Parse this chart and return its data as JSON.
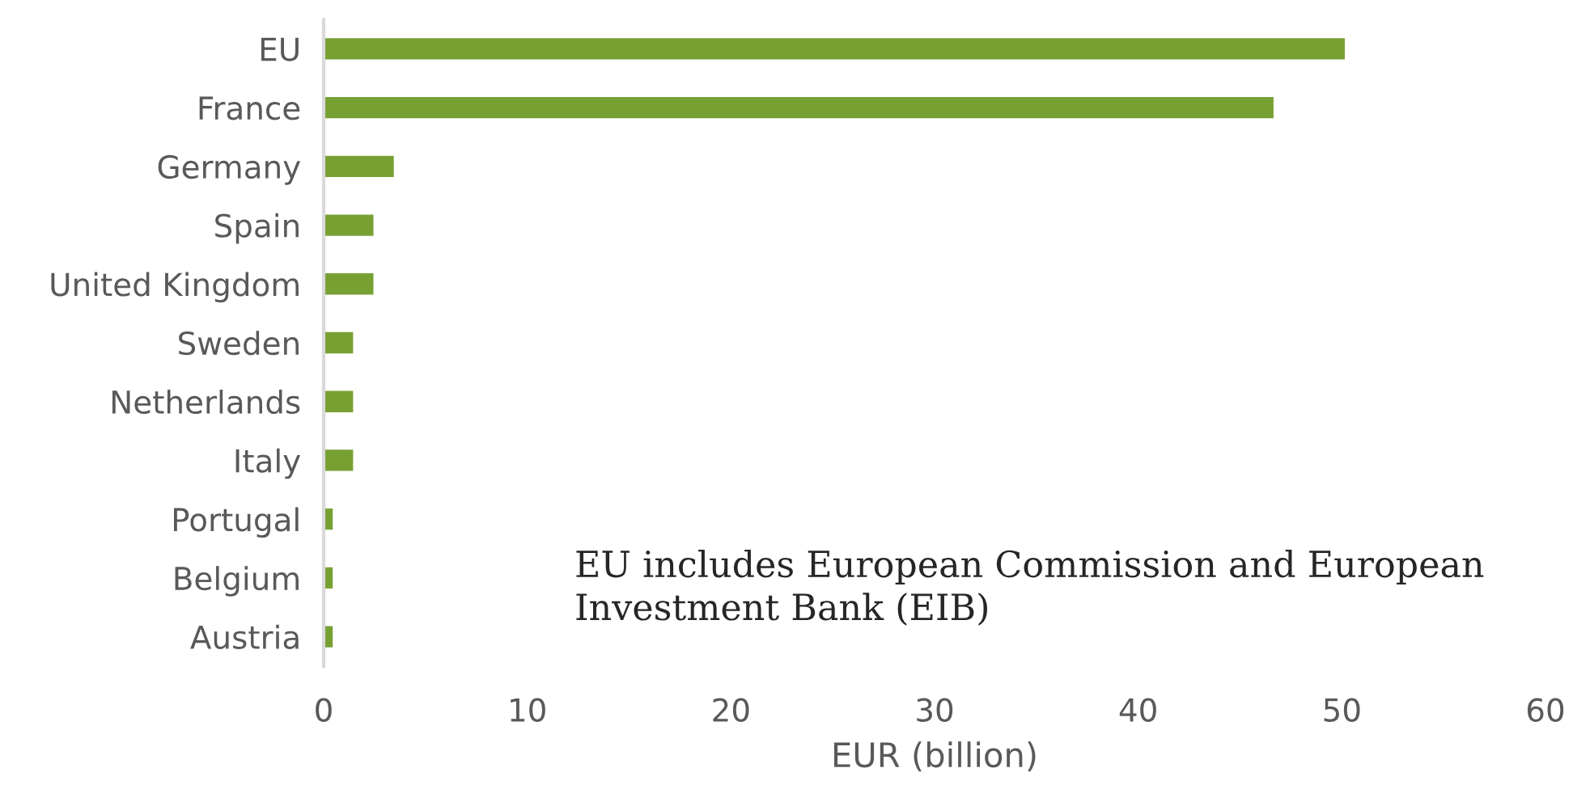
{
  "chart_data": {
    "type": "bar",
    "orientation": "horizontal",
    "categories": [
      "EU",
      "France",
      "Germany",
      "Spain",
      "United Kingdom",
      "Sweden",
      "Netherlands",
      "Italy",
      "Portugal",
      "Belgium",
      "Austria"
    ],
    "series": [
      {
        "color": "#77a033",
        "values": [
          50.2,
          46.7,
          3.5,
          2.5,
          2.5,
          1.5,
          1.5,
          1.5,
          0.5,
          0.5,
          0.5
        ]
      }
    ],
    "xlabel": "EUR (billion)",
    "xlim": [
      0,
      60
    ],
    "xticks": [
      0,
      10,
      20,
      30,
      40,
      50,
      60
    ],
    "grid": false,
    "legend": false,
    "annotations": [
      "EU includes European Commission and European Investment Bank (EIB)"
    ]
  }
}
